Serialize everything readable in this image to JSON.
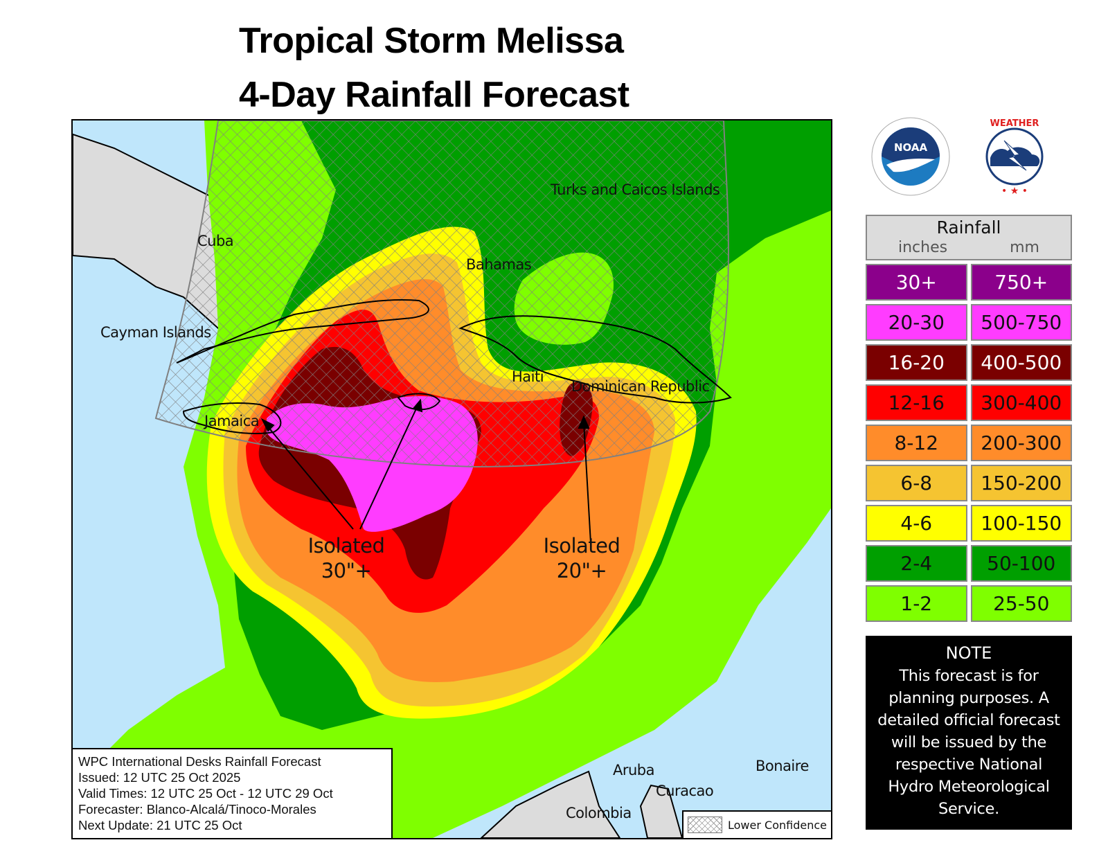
{
  "title": {
    "line1": "Tropical Storm Melissa",
    "line2": "4-Day Rainfall Forecast"
  },
  "logos": {
    "noaa": {
      "icon": "noaa-logo-icon",
      "text": "NOAA",
      "ring_text": "NATIONAL OCEANIC AND ATMOSPHERIC ADMINISTRATION · U.S. DEPARTMENT OF COMMERCE"
    },
    "nws": {
      "icon": "nws-logo-icon",
      "ring_text": "NATIONAL WEATHER SERVICE"
    }
  },
  "map": {
    "labels": {
      "cuba": "Cuba",
      "cayman": "Cayman Islands",
      "turks": "Turks and Caicos Islands",
      "bahamas": "Bahamas",
      "haiti": "Haiti",
      "dominican": "Dominican Republic",
      "jamaica": "Jamaica",
      "aruba": "Aruba",
      "curacao": "Curacao",
      "bonaire": "Bonaire",
      "colombia": "Colombia"
    },
    "annotations": [
      {
        "line1": "Isolated",
        "line2": "30\"+"
      },
      {
        "line1": "Isolated",
        "line2": "20\"+"
      }
    ],
    "info": {
      "line1": "WPC International Desks Rainfall Forecast",
      "line2": "Issued: 12 UTC 25 Oct 2025",
      "line3": "Valid Times: 12 UTC 25 Oct - 12 UTC 29 Oct",
      "line4": "Forecaster: Blanco-Alcalá/Tinoco-Morales",
      "line5": "Next Update: 21 UTC 25 Oct"
    },
    "lower_confidence_label": "Lower Confidence",
    "colors": {
      "ocean": "#bfe6fb",
      "land_outside": "#dcdcdc"
    }
  },
  "legend": {
    "title": "Rainfall",
    "unit_in": "inches",
    "unit_mm": "mm",
    "rows": [
      {
        "in": "30+",
        "mm": "750+",
        "color": "#8b008b",
        "text": "#ffffff"
      },
      {
        "in": "20-30",
        "mm": "500-750",
        "color": "#ff3cff",
        "text": "#111111"
      },
      {
        "in": "16-20",
        "mm": "400-500",
        "color": "#7a0000",
        "text": "#ffffff"
      },
      {
        "in": "12-16",
        "mm": "300-400",
        "color": "#ff0000",
        "text": "#111111"
      },
      {
        "in": "8-12",
        "mm": "200-300",
        "color": "#ff8c2a",
        "text": "#111111"
      },
      {
        "in": "6-8",
        "mm": "150-200",
        "color": "#f5c431",
        "text": "#111111"
      },
      {
        "in": "4-6",
        "mm": "100-150",
        "color": "#ffff00",
        "text": "#111111"
      },
      {
        "in": "2-4",
        "mm": "50-100",
        "color": "#009f00",
        "text": "#111111"
      },
      {
        "in": "1-2",
        "mm": "25-50",
        "color": "#7fff00",
        "text": "#111111"
      }
    ]
  },
  "note": {
    "heading": "NOTE",
    "lines": [
      "This forecast is for",
      "planning purposes. A",
      "detailed official forecast",
      "will be issued by the",
      "respective National",
      "Hydro Meteorological",
      "Service."
    ]
  }
}
